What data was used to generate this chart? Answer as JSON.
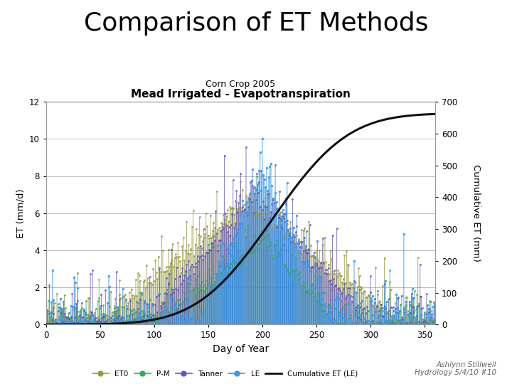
{
  "title": "Comparison of ET Methods",
  "subtitle": "Mead Irrigated - Evapotranspiration",
  "subtitle2": "Corn Crop 2005",
  "xlabel": "Day of Year",
  "ylabel_left": "ET (mm/d)",
  "ylabel_right": "Cumulative ET (mm)",
  "ylim_left": [
    0,
    12
  ],
  "ylim_right": [
    0,
    700
  ],
  "xlim": [
    0,
    360
  ],
  "yticks_left": [
    0,
    2,
    4,
    6,
    8,
    10,
    12
  ],
  "yticks_right": [
    0,
    100,
    200,
    300,
    400,
    500,
    600,
    700
  ],
  "xticks": [
    0,
    50,
    100,
    150,
    200,
    250,
    300,
    350
  ],
  "series_colors": {
    "ET0": "#999944",
    "P-M": "#33aa55",
    "Tanner": "#6655bb",
    "LE": "#3399ee",
    "Cumulative": "#111111"
  },
  "legend_labels": [
    "ET0",
    "P-M",
    "Tanner",
    "LE",
    "Cumulative ET (LE)"
  ],
  "annotation": "Ashlynn Stillwell\nHydrology 5/4/10 #10",
  "background_color": "#ffffff",
  "grid_color": "#bbbbbb",
  "title_fontsize": 26,
  "subtitle_fontsize": 11,
  "subtitle2_fontsize": 9
}
